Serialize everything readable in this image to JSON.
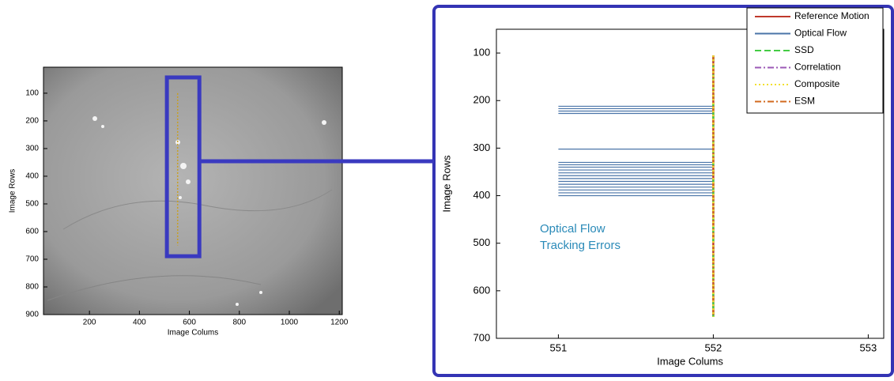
{
  "chart_data": [
    {
      "type": "image-plot",
      "xlabel": "Image Colums",
      "ylabel": "Image Rows",
      "xlim": [
        16,
        1212
      ],
      "ylim": [
        6,
        900
      ],
      "y_reversed": true,
      "xticks": [
        200,
        400,
        600,
        800,
        1000,
        1200
      ],
      "yticks": [
        100,
        200,
        300,
        400,
        500,
        600,
        700,
        800,
        900
      ],
      "zoom_box": {
        "x": [
          510,
          640
        ],
        "y": [
          43,
          689
        ],
        "color": "#3a3ac0"
      },
      "series": [
        {
          "color": "#c8a020",
          "x": [
            553,
            553
          ],
          "y": [
            100,
            650
          ]
        }
      ]
    },
    {
      "type": "line",
      "xlabel": "Image Colums",
      "ylabel": "Image Rows",
      "xlim": [
        550.6,
        553.1
      ],
      "ylim": [
        50,
        700
      ],
      "y_reversed": true,
      "xticks": [
        551,
        552,
        553
      ],
      "yticks": [
        100,
        200,
        300,
        400,
        500,
        600,
        700
      ],
      "legend": "upper right",
      "annotation": [
        "Optical Flow",
        "Tracking Errors"
      ],
      "annotation_color": "#2a8ab8",
      "series": [
        {
          "name": "Reference Motion",
          "color": "#c0392b",
          "dash": "solid",
          "x": [
            552,
            552
          ],
          "y": [
            105,
            655
          ]
        },
        {
          "name": "Optical Flow",
          "color": "#4a74a8",
          "dash": "solid",
          "x_start": 551,
          "x_end": 552,
          "rows": [
            212,
            217,
            222,
            227,
            302,
            330,
            335,
            340,
            346,
            352,
            358,
            364,
            370,
            376,
            382,
            388,
            394,
            400
          ]
        },
        {
          "name": "SSD",
          "color": "#44cc44",
          "dash": "dashed",
          "x": [
            552,
            552
          ],
          "y": [
            105,
            655
          ]
        },
        {
          "name": "Correlation",
          "color": "#9b59b6",
          "dash": "dashdot",
          "x": [
            552,
            552
          ],
          "y": [
            105,
            655
          ]
        },
        {
          "name": "Composite",
          "color": "#f2e030",
          "dash": "dotted",
          "x": [
            552,
            552
          ],
          "y": [
            105,
            655
          ]
        },
        {
          "name": "ESM",
          "color": "#d2691e",
          "dash": "dashdot",
          "x": [
            552,
            552
          ],
          "y": [
            105,
            655
          ]
        }
      ]
    }
  ]
}
